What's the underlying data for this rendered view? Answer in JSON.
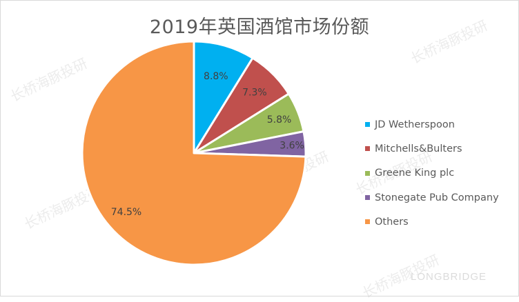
{
  "chart_data": {
    "type": "pie",
    "title": "2019年英国酒馆市场份额",
    "categories": [
      "JD Wetherspoon",
      "Mitchells&Bulters",
      "Greene King plc",
      "Stonegate Pub Company",
      "Others"
    ],
    "values": [
      8.8,
      7.3,
      5.8,
      3.6,
      74.5
    ],
    "value_labels": [
      "8.8%",
      "7.3%",
      "5.8%",
      "3.6%",
      "74.5%"
    ],
    "colors": [
      "#00b0f0",
      "#c0504d",
      "#9bbb59",
      "#8064a2",
      "#f79646"
    ],
    "start_angle_deg": 0,
    "direction": "clockwise",
    "legend_position": "right"
  },
  "title": "2019年英国酒馆市场份额",
  "legend": {
    "items": [
      {
        "label": "JD Wetherspoon",
        "color": "#00b0f0"
      },
      {
        "label": "Mitchells&Bulters",
        "color": "#c0504d"
      },
      {
        "label": "Greene King plc",
        "color": "#9bbb59"
      },
      {
        "label": "Stonegate Pub Company",
        "color": "#8064a2"
      },
      {
        "label": "Others",
        "color": "#f79646"
      }
    ]
  },
  "watermark": {
    "text": "长桥海豚投研",
    "logo_text": "LONGBRIDGE"
  }
}
